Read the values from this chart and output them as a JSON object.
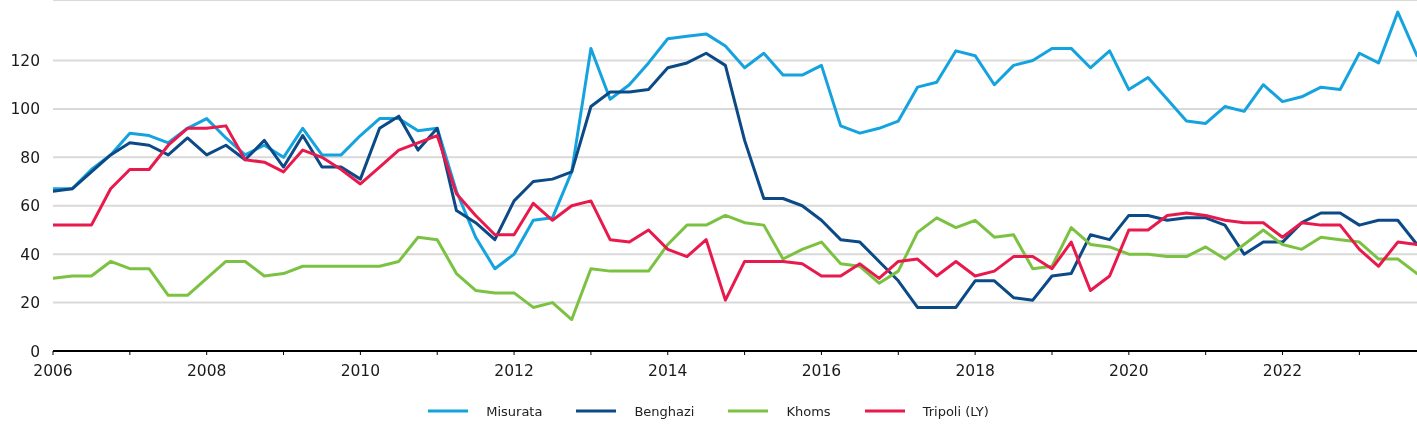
{
  "chart_data": {
    "type": "line",
    "x": [
      2006,
      2006.25,
      2006.5,
      2006.75,
      2007,
      2007.25,
      2007.5,
      2007.75,
      2008,
      2008.25,
      2008.5,
      2008.75,
      2009,
      2009.25,
      2009.5,
      2009.75,
      2010,
      2010.25,
      2010.5,
      2010.75,
      2011,
      2011.25,
      2011.5,
      2011.75,
      2012,
      2012.25,
      2012.5,
      2012.75,
      2013,
      2013.25,
      2013.5,
      2013.75,
      2014,
      2014.25,
      2014.5,
      2014.75,
      2015,
      2015.25,
      2015.5,
      2015.75,
      2016,
      2016.25,
      2016.5,
      2016.75,
      2017,
      2017.25,
      2017.5,
      2017.75,
      2018,
      2018.25,
      2018.5,
      2018.75,
      2019,
      2019.25,
      2019.5,
      2019.75,
      2020,
      2020.25,
      2020.5,
      2020.75,
      2021,
      2021.25,
      2021.5,
      2021.75,
      2022,
      2022.25,
      2022.5,
      2022.75,
      2023,
      2023.25,
      2023.5,
      2023.75
    ],
    "series": [
      {
        "name": "Misurata",
        "color": "#14a3df",
        "values": [
          67,
          67,
          75,
          81,
          90,
          89,
          86,
          92,
          96,
          88,
          81,
          85,
          80,
          92,
          81,
          81,
          89,
          96,
          96,
          91,
          92,
          66,
          47,
          34,
          40,
          54,
          55,
          74,
          125,
          104,
          110,
          119,
          129,
          130,
          131,
          126,
          117,
          123,
          114,
          114,
          118,
          93,
          90,
          92,
          95,
          109,
          111,
          124,
          122,
          110,
          118,
          120,
          125,
          125,
          117,
          124,
          108,
          113,
          104,
          95,
          94,
          101,
          99,
          110,
          103,
          105,
          109,
          108,
          123,
          119,
          140,
          122
        ]
      },
      {
        "name": "Benghazi",
        "color": "#0b4a86",
        "values": [
          66,
          67,
          74,
          81,
          86,
          85,
          81,
          88,
          81,
          85,
          79,
          87,
          76,
          89,
          76,
          76,
          71,
          92,
          97,
          83,
          92,
          58,
          53,
          46,
          62,
          70,
          71,
          74,
          101,
          107,
          107,
          108,
          117,
          119,
          123,
          118,
          87,
          63,
          63,
          60,
          54,
          46,
          45,
          37,
          29,
          18,
          18,
          18,
          29,
          29,
          22,
          21,
          31,
          32,
          48,
          46,
          56,
          56,
          54,
          55,
          55,
          52,
          40,
          45,
          45,
          53,
          57,
          57,
          52,
          54,
          54,
          44
        ]
      },
      {
        "name": "Khoms",
        "color": "#7cc242",
        "values": [
          30,
          31,
          31,
          37,
          34,
          34,
          23,
          23,
          30,
          37,
          37,
          31,
          32,
          35,
          35,
          35,
          35,
          35,
          37,
          47,
          46,
          32,
          25,
          24,
          24,
          18,
          20,
          13,
          34,
          33,
          33,
          33,
          44,
          52,
          52,
          56,
          53,
          52,
          38,
          42,
          45,
          36,
          35,
          28,
          33,
          49,
          55,
          51,
          54,
          47,
          48,
          34,
          35,
          51,
          44,
          43,
          40,
          40,
          39,
          39,
          43,
          38,
          44,
          50,
          44,
          42,
          47,
          46,
          45,
          38,
          38,
          32
        ]
      },
      {
        "name": "Tripoli (LY)",
        "color": "#e8194c",
        "values": [
          52,
          52,
          52,
          67,
          75,
          75,
          85,
          92,
          92,
          93,
          79,
          78,
          74,
          83,
          80,
          75,
          69,
          76,
          83,
          86,
          89,
          65,
          56,
          48,
          48,
          61,
          54,
          60,
          62,
          46,
          45,
          50,
          42,
          39,
          46,
          21,
          37,
          37,
          37,
          36,
          31,
          31,
          36,
          30,
          37,
          38,
          31,
          37,
          31,
          33,
          39,
          39,
          34,
          45,
          25,
          31,
          50,
          50,
          56,
          57,
          56,
          54,
          53,
          53,
          47,
          53,
          52,
          52,
          42,
          35,
          45,
          44
        ]
      }
    ],
    "xlim": [
      2006,
      2023.75
    ],
    "xticks": [
      2006,
      {
        "value": 2007,
        "label": null
      },
      2008,
      {
        "value": 2009,
        "label": null
      },
      2010,
      {
        "value": 2011,
        "label": null
      },
      2012,
      {
        "value": 2013,
        "label": null
      },
      2014,
      {
        "value": 2015,
        "label": null
      },
      2016,
      {
        "value": 2017,
        "label": null
      },
      2018,
      {
        "value": 2019,
        "label": null
      },
      2020,
      {
        "value": 2021,
        "label": null
      },
      2022,
      {
        "value": 2023,
        "label": null
      }
    ],
    "ylim": [
      0,
      145
    ],
    "yticks": [
      0,
      20,
      40,
      60,
      80,
      100,
      120
    ],
    "grid": "y",
    "legend": "bottom"
  }
}
